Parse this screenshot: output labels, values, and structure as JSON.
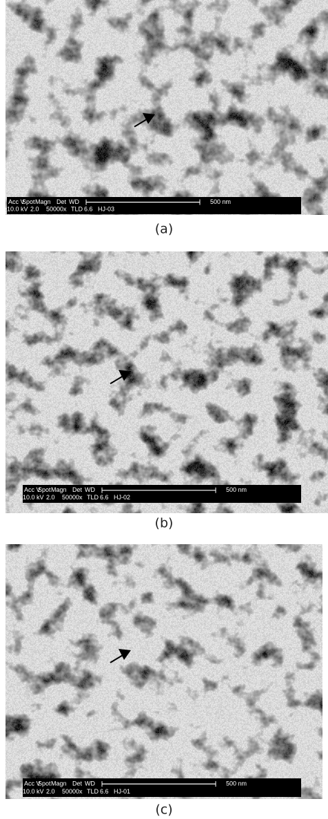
{
  "panels": [
    {
      "caption": "(a)",
      "info": {
        "row1": [
          "Acc V",
          "Spot",
          "Magn",
          "Det",
          "WD"
        ],
        "row2": [
          "10.0 kV",
          "2.0",
          "50000x",
          "TLD",
          "6.6",
          "HJ-03"
        ],
        "scale": "500 nm"
      }
    },
    {
      "caption": "(b)",
      "info": {
        "row1": [
          "Acc V",
          "Spot",
          "Magn",
          "Det",
          "WD"
        ],
        "row2": [
          "10.0 kV",
          "2.0",
          "50000x",
          "TLD",
          "6.6",
          "HJ-02"
        ],
        "scale": "500 nm"
      }
    },
    {
      "caption": "(c)",
      "info": {
        "row1": [
          "Acc V",
          "Spot",
          "Magn",
          "Det",
          "WD"
        ],
        "row2": [
          "10.0 kV",
          "2.0",
          "50000x",
          "TLD",
          "6.6",
          "HJ-01"
        ],
        "scale": "500 nm"
      }
    }
  ]
}
